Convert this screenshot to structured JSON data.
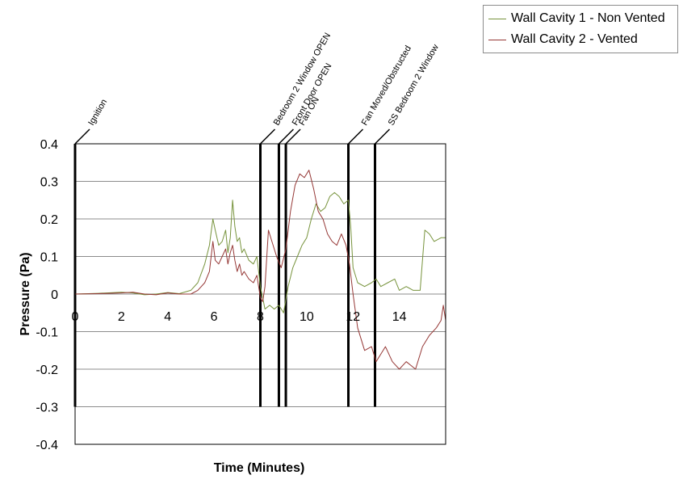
{
  "chart_data": {
    "type": "line",
    "title": "",
    "xlabel": "Time (Minutes)",
    "ylabel": "Pressure (Pa)",
    "xlim": [
      0,
      16
    ],
    "ylim": [
      -0.4,
      0.4
    ],
    "xticks": [
      "0",
      "2",
      "4",
      "6",
      "8",
      "10",
      "12",
      "14"
    ],
    "yticks": [
      "0.4",
      "0.3",
      "0.2",
      "0.1",
      "0",
      "-0.1",
      "-0.2",
      "-0.3",
      "-0.4"
    ],
    "grid": "horizontal",
    "legend_position": "top-right",
    "series": [
      {
        "name": "Wall Cavity 1 - Non Vented",
        "color": "#77933c",
        "x": [
          0,
          1,
          2,
          2.5,
          3,
          3.5,
          4,
          4.5,
          5,
          5.3,
          5.6,
          5.8,
          5.95,
          6.05,
          6.2,
          6.35,
          6.5,
          6.6,
          6.7,
          6.8,
          6.9,
          7.0,
          7.1,
          7.2,
          7.3,
          7.5,
          7.7,
          7.85,
          8.0,
          8.1,
          8.2,
          8.4,
          8.6,
          8.8,
          9.0,
          9.2,
          9.4,
          9.6,
          9.8,
          10.0,
          10.2,
          10.4,
          10.6,
          10.8,
          11.0,
          11.2,
          11.4,
          11.6,
          11.8,
          11.9,
          12.0,
          12.2,
          12.5,
          12.8,
          13.0,
          13.2,
          13.5,
          13.8,
          14.0,
          14.3,
          14.6,
          14.9,
          15.1,
          15.3,
          15.5,
          15.8,
          16.0
        ],
        "y": [
          0,
          0.002,
          0.005,
          0.003,
          -0.002,
          0.0,
          0.004,
          0.001,
          0.01,
          0.03,
          0.08,
          0.13,
          0.2,
          0.17,
          0.13,
          0.14,
          0.17,
          0.11,
          0.15,
          0.25,
          0.18,
          0.14,
          0.15,
          0.11,
          0.12,
          0.09,
          0.08,
          0.1,
          0.02,
          -0.01,
          -0.04,
          -0.03,
          -0.04,
          -0.03,
          -0.05,
          0.02,
          0.07,
          0.1,
          0.13,
          0.15,
          0.2,
          0.24,
          0.22,
          0.23,
          0.26,
          0.27,
          0.26,
          0.24,
          0.25,
          0.18,
          0.07,
          0.03,
          0.02,
          0.03,
          0.04,
          0.02,
          0.03,
          0.04,
          0.01,
          0.02,
          0.01,
          0.01,
          0.17,
          0.16,
          0.14,
          0.15,
          0.15
        ]
      },
      {
        "name": "Wall Cavity 2 - Vented",
        "color": "#953735",
        "x": [
          0,
          1,
          2,
          2.5,
          3,
          3.5,
          4,
          4.5,
          5,
          5.3,
          5.6,
          5.8,
          5.95,
          6.05,
          6.2,
          6.35,
          6.5,
          6.6,
          6.7,
          6.8,
          6.9,
          7.0,
          7.1,
          7.2,
          7.3,
          7.5,
          7.7,
          7.85,
          8.0,
          8.1,
          8.2,
          8.35,
          8.5,
          8.7,
          8.9,
          9.1,
          9.3,
          9.5,
          9.7,
          9.9,
          10.1,
          10.3,
          10.5,
          10.7,
          10.9,
          11.1,
          11.3,
          11.5,
          11.7,
          11.85,
          12.0,
          12.2,
          12.5,
          12.8,
          13.0,
          13.2,
          13.4,
          13.7,
          14.0,
          14.3,
          14.5,
          14.7,
          15.0,
          15.3,
          15.6,
          15.8,
          15.9,
          16.0
        ],
        "y": [
          0,
          0.001,
          0.003,
          0.005,
          0.0,
          -0.002,
          0.003,
          0.0,
          0.0,
          0.01,
          0.03,
          0.06,
          0.14,
          0.09,
          0.08,
          0.1,
          0.12,
          0.08,
          0.11,
          0.13,
          0.09,
          0.06,
          0.08,
          0.05,
          0.06,
          0.04,
          0.03,
          0.05,
          -0.01,
          -0.02,
          0.02,
          0.17,
          0.14,
          0.1,
          0.07,
          0.12,
          0.22,
          0.29,
          0.32,
          0.31,
          0.33,
          0.28,
          0.22,
          0.2,
          0.16,
          0.14,
          0.13,
          0.16,
          0.13,
          0.08,
          0.0,
          -0.09,
          -0.15,
          -0.14,
          -0.18,
          -0.16,
          -0.14,
          -0.18,
          -0.2,
          -0.18,
          -0.19,
          -0.2,
          -0.14,
          -0.11,
          -0.09,
          -0.07,
          -0.03,
          -0.07
        ]
      }
    ],
    "events": [
      {
        "label": "Ignition",
        "x": 0
      },
      {
        "label": "Bedroom 2 Window OPEN",
        "x": 8
      },
      {
        "label": "Front Door OPEN",
        "x": 8.8
      },
      {
        "label": "Fan ON",
        "x": 9.1
      },
      {
        "label": "Fan Moved/Obstructed",
        "x": 11.8
      },
      {
        "label": "SS Bedroom 2 Window",
        "x": 12.95
      }
    ]
  }
}
